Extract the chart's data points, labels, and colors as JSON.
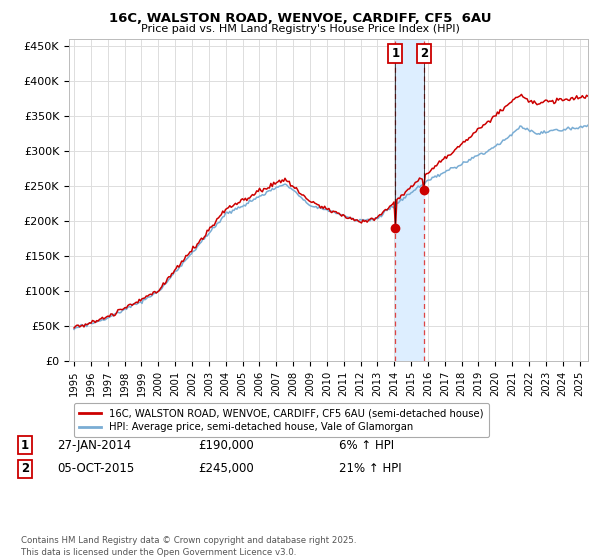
{
  "title_line1": "16C, WALSTON ROAD, WENVOE, CARDIFF, CF5  6AU",
  "title_line2": "Price paid vs. HM Land Registry's House Price Index (HPI)",
  "ylim": [
    0,
    460000
  ],
  "yticks": [
    0,
    50000,
    100000,
    150000,
    200000,
    250000,
    300000,
    350000,
    400000,
    450000
  ],
  "ytick_labels": [
    "£0",
    "£50K",
    "£100K",
    "£150K",
    "£200K",
    "£250K",
    "£300K",
    "£350K",
    "£400K",
    "£450K"
  ],
  "xlim_start": 1994.7,
  "xlim_end": 2025.5,
  "xticks": [
    1995,
    1996,
    1997,
    1998,
    1999,
    2000,
    2001,
    2002,
    2003,
    2004,
    2005,
    2006,
    2007,
    2008,
    2009,
    2010,
    2011,
    2012,
    2013,
    2014,
    2015,
    2016,
    2017,
    2018,
    2019,
    2020,
    2021,
    2022,
    2023,
    2024,
    2025
  ],
  "sale1_x": 2014.07,
  "sale1_y": 190000,
  "sale1_label": "1",
  "sale1_date": "27-JAN-2014",
  "sale1_price": "£190,000",
  "sale1_hpi": "6% ↑ HPI",
  "sale2_x": 2015.76,
  "sale2_y": 245000,
  "sale2_label": "2",
  "sale2_date": "05-OCT-2015",
  "sale2_price": "£245,000",
  "sale2_hpi": "21% ↑ HPI",
  "shaded_x1": 2014.07,
  "shaded_x2": 2015.76,
  "line1_color": "#cc0000",
  "line2_color": "#7aadd4",
  "shaded_color": "#ddeeff",
  "vline_color": "#dd4444",
  "marker_box_color": "#cc0000",
  "dot_color": "#cc0000",
  "legend_line1": "16C, WALSTON ROAD, WENVOE, CARDIFF, CF5 6AU (semi-detached house)",
  "legend_line2": "HPI: Average price, semi-detached house, Vale of Glamorgan",
  "footer": "Contains HM Land Registry data © Crown copyright and database right 2025.\nThis data is licensed under the Open Government Licence v3.0.",
  "bg_color": "#ffffff",
  "grid_color": "#dddddd"
}
